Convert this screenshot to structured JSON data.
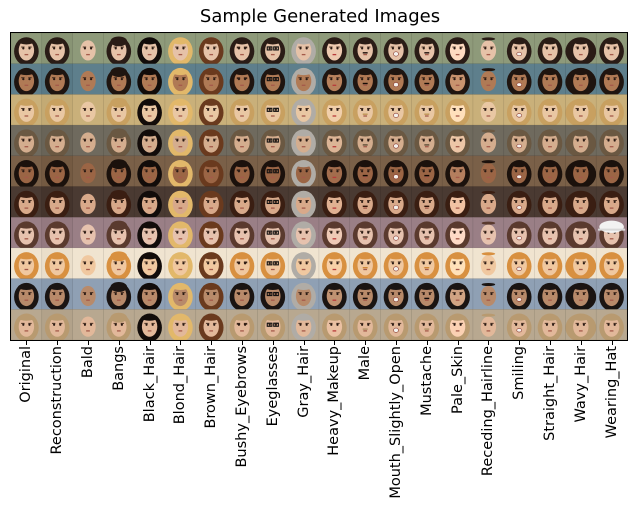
{
  "figure": {
    "title": "Sample Generated Images",
    "columns": [
      "Original",
      "Reconstruction",
      "Bald",
      "Bangs",
      "Black_Hair",
      "Blond_Hair",
      "Brown_Hair",
      "Bushy_Eyebrows",
      "Eyeglasses",
      "Gray_Hair",
      "Heavy_Makeup",
      "Male",
      "Mouth_Slightly_Open",
      "Mustache",
      "Pale_Skin",
      "Receding_Hairline",
      "Smiling",
      "Straight_Hair",
      "Wavy_Hair",
      "Wearing_Hat"
    ],
    "rows": [
      {
        "bg": "#8e9a7a",
        "skin": "#e6c2a8",
        "hair": "#2a1c16"
      },
      {
        "bg": "#5e7f8c",
        "skin": "#b07a55",
        "hair": "#1f1510"
      },
      {
        "bg": "#c9b07a",
        "skin": "#e9c7a3",
        "hair": "#c8a060"
      },
      {
        "bg": "#6f6a5e",
        "skin": "#d4ad8e",
        "hair": "#6a5842"
      },
      {
        "bg": "#7a6048",
        "skin": "#9b6545",
        "hair": "#1b110c"
      },
      {
        "bg": "#4a3a32",
        "skin": "#d8a98a",
        "hair": "#3a1e12"
      },
      {
        "bg": "#9a7f86",
        "skin": "#e6c2ae",
        "hair": "#5a3a2e"
      },
      {
        "bg": "#f0e4d0",
        "skin": "#f0c8a0",
        "hair": "#d89040"
      },
      {
        "bg": "#8fa0b4",
        "skin": "#b88a6a",
        "hair": "#1a1412"
      },
      {
        "bg": "#b8a890",
        "skin": "#e2b89a",
        "hair": "#b89a70"
      }
    ],
    "icons": {
      "glasses": "eyeglasses-icon",
      "hat": "hat-icon"
    }
  }
}
